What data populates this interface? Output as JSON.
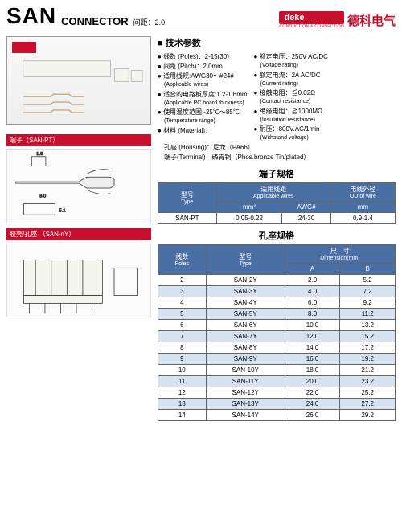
{
  "header": {
    "title_main": "SAN",
    "title_sub": "CONNECTOR",
    "pitch_label": "间距：2.0",
    "brand_logo": "deke",
    "brand_tag": "CONDUCTION & CONNECTION",
    "brand_cn": "德科电气"
  },
  "specs": {
    "title": "技术参数",
    "left": [
      {
        "main": "线数 (Poles)：2-15(30)"
      },
      {
        "main": "间距 (Pitch)：2.0mm"
      },
      {
        "main": "适用线规:AWG30～#24#",
        "sub": "(Applicable wires)"
      },
      {
        "main": "适合的电路板厚度:1.2-1.6mm",
        "sub": "(Applicable PC board thickness)"
      },
      {
        "main": "使用温度范围:-25℃～85℃",
        "sub": "(Temperature range)"
      },
      {
        "main": "材料 (Material)："
      }
    ],
    "mat1": "孔座 (Housing)：尼龙（PA66）",
    "mat2": "端子(Terminal)：磷青铜（Phos.bronze Tin/plated）",
    "right": [
      {
        "main": "额定电压：250V AC/DC",
        "sub": "(Voltage rating)"
      },
      {
        "main": "额定电流：2A AC/DC",
        "sub": "(Current rating)"
      },
      {
        "main": "接触电阻：≦0.02Ω",
        "sub": "(Contact resistance)"
      },
      {
        "main": "绝缘电阻：≧1000MΩ",
        "sub": "(Insulation resistance)"
      },
      {
        "main": "耐压：800V.AC/1min",
        "sub": "(Withstand voltage)"
      }
    ]
  },
  "terminal_section": "端子（SAN-PT）",
  "housing_section": "胶壳/孔座 （SAN-nY）",
  "terminal_table": {
    "title": "端子规格",
    "h_type": "型号",
    "h_type_en": "Type",
    "h_wires": "适用线距",
    "h_wires_en": "Applicable wires",
    "h_od": "电线外径",
    "h_od_en": "OD.of wire",
    "h_mm2": "mm²",
    "h_awg": "AWG#",
    "h_mm": "mm",
    "row": {
      "type": "SAN-PT",
      "mm2": "0.05-0.22",
      "awg": "24-30",
      "od": "0.9-1.4"
    }
  },
  "housing_table": {
    "title": "孔座规格",
    "h_poles": "线数",
    "h_poles_en": "Poles",
    "h_type": "型号",
    "h_type_en": "Type",
    "h_dim": "尺　寸",
    "h_dim_en": "Dimension(mm)",
    "h_a": "A",
    "h_b": "B",
    "rows": [
      {
        "p": "2",
        "t": "SAN-2Y",
        "a": "2.0",
        "b": "5.2"
      },
      {
        "p": "3",
        "t": "SAN-3Y",
        "a": "4.0",
        "b": "7.2"
      },
      {
        "p": "4",
        "t": "SAN-4Y",
        "a": "6.0",
        "b": "9.2"
      },
      {
        "p": "5",
        "t": "SAN-5Y",
        "a": "8.0",
        "b": "11.2"
      },
      {
        "p": "6",
        "t": "SAN-6Y",
        "a": "10.0",
        "b": "13.2"
      },
      {
        "p": "7",
        "t": "SAN-7Y",
        "a": "12.0",
        "b": "15.2"
      },
      {
        "p": "8",
        "t": "SAN-8Y",
        "a": "14.0",
        "b": "17.2"
      },
      {
        "p": "9",
        "t": "SAN-9Y",
        "a": "16.0",
        "b": "19.2"
      },
      {
        "p": "10",
        "t": "SAN-10Y",
        "a": "18.0",
        "b": "21.2"
      },
      {
        "p": "11",
        "t": "SAN-11Y",
        "a": "20.0",
        "b": "23.2"
      },
      {
        "p": "12",
        "t": "SAN-12Y",
        "a": "22.0",
        "b": "25.2"
      },
      {
        "p": "13",
        "t": "SAN-13Y",
        "a": "24.0",
        "b": "27.2"
      },
      {
        "p": "14",
        "t": "SAN-14Y",
        "a": "26.0",
        "b": "29.2"
      }
    ]
  },
  "drawing_terminal": {
    "d1": "1.8",
    "d2": "9.0",
    "d3": "5.1"
  },
  "colors": {
    "brand": "#c8102e",
    "th": "#4a6fa5",
    "row_alt": "#d6e2ef"
  }
}
